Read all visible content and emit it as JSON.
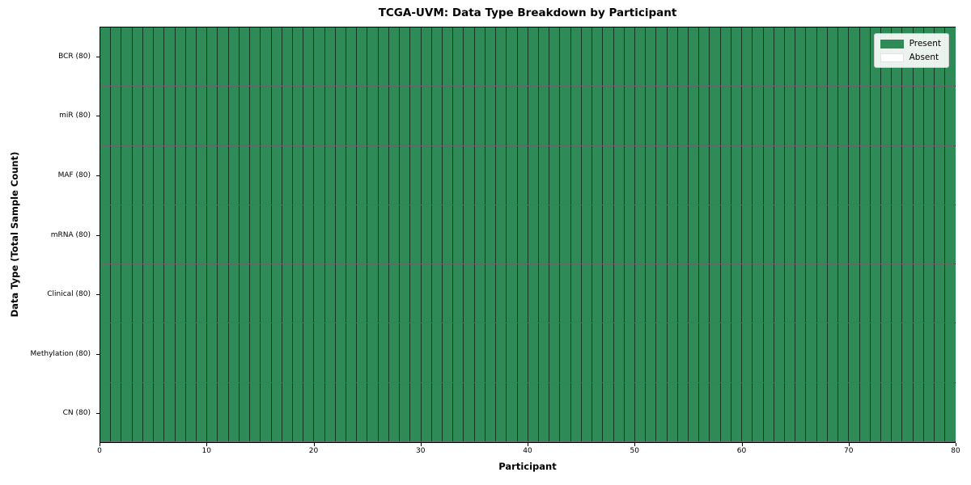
{
  "title": "TCGA-UVM: Data Type Breakdown by Participant",
  "chart_data": {
    "type": "heatmap",
    "title": "TCGA-UVM: Data Type Breakdown by Participant",
    "xlabel": "Participant",
    "ylabel": "Data Type (Total Sample Count)",
    "xlim": [
      0,
      80
    ],
    "x_ticks": [
      0,
      10,
      20,
      30,
      40,
      50,
      60,
      70,
      80
    ],
    "n_participants": 80,
    "rows": [
      {
        "label": "BCR (80)",
        "total_samples": 80,
        "present_count": 80,
        "absent_count": 0
      },
      {
        "label": "miR (80)",
        "total_samples": 80,
        "present_count": 80,
        "absent_count": 0
      },
      {
        "label": "MAF (80)",
        "total_samples": 80,
        "present_count": 80,
        "absent_count": 0
      },
      {
        "label": "mRNA (80)",
        "total_samples": 80,
        "present_count": 80,
        "absent_count": 0
      },
      {
        "label": "Clinical (80)",
        "total_samples": 80,
        "present_count": 80,
        "absent_count": 0
      },
      {
        "label": "Methylation (80)",
        "total_samples": 80,
        "present_count": 80,
        "absent_count": 0
      },
      {
        "label": "CN (80)",
        "total_samples": 80,
        "present_count": 80,
        "absent_count": 0
      }
    ],
    "all_cells_present": true,
    "legend": {
      "position": "upper right",
      "entries": [
        {
          "label": "Present",
          "value": "present"
        },
        {
          "label": "Absent",
          "value": "absent"
        }
      ]
    },
    "colors": {
      "present": "#2e8b57",
      "absent": "#ffffff",
      "cell_border": "rgba(0,0,0,0.6)"
    },
    "grid": false
  }
}
